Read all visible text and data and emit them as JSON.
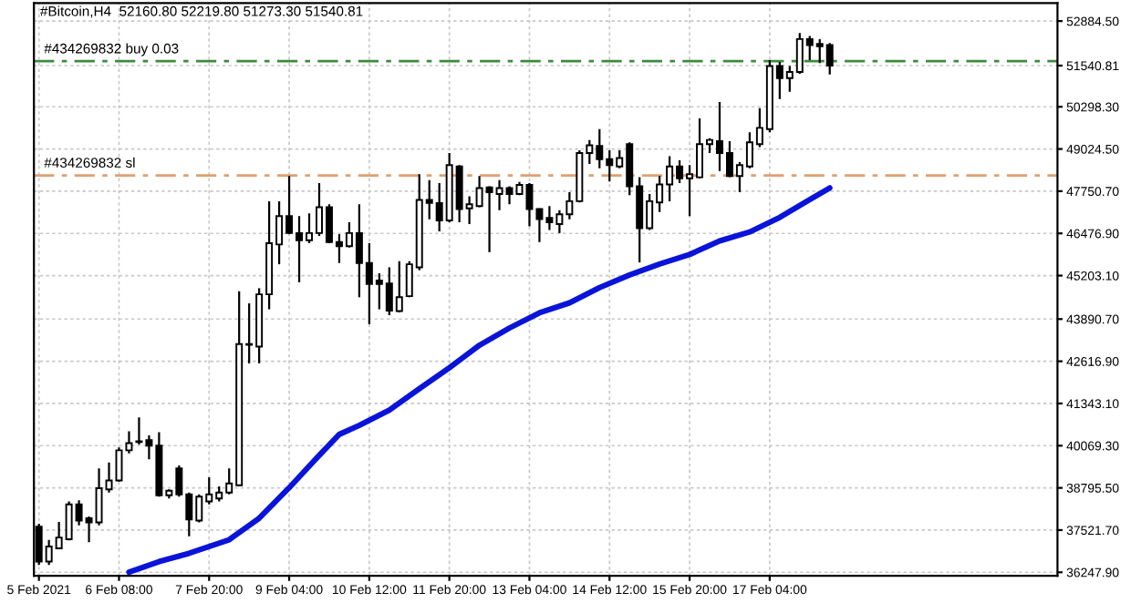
{
  "chart_data": {
    "type": "candlestick",
    "title": "#Bitcoin,H4  52160.80 52219.80 51273.30 51540.81",
    "x": [
      "2021-02-05T00:00",
      "2021-02-05T04:00",
      "2021-02-05T08:00",
      "2021-02-05T12:00",
      "2021-02-05T16:00",
      "2021-02-05T20:00",
      "2021-02-06T00:00",
      "2021-02-06T04:00",
      "2021-02-06T08:00",
      "2021-02-06T12:00",
      "2021-02-06T16:00",
      "2021-02-06T20:00",
      "2021-02-07T00:00",
      "2021-02-07T04:00",
      "2021-02-07T08:00",
      "2021-02-07T12:00",
      "2021-02-07T16:00",
      "2021-02-07T20:00",
      "2021-02-08T00:00",
      "2021-02-08T04:00",
      "2021-02-08T08:00",
      "2021-02-08T12:00",
      "2021-02-08T16:00",
      "2021-02-08T20:00",
      "2021-02-09T00:00",
      "2021-02-09T04:00",
      "2021-02-09T08:00",
      "2021-02-09T12:00",
      "2021-02-09T16:00",
      "2021-02-09T20:00",
      "2021-02-10T00:00",
      "2021-02-10T04:00",
      "2021-02-10T08:00",
      "2021-02-10T12:00",
      "2021-02-10T16:00",
      "2021-02-10T20:00",
      "2021-02-11T00:00",
      "2021-02-11T04:00",
      "2021-02-11T08:00",
      "2021-02-11T12:00",
      "2021-02-11T16:00",
      "2021-02-11T20:00",
      "2021-02-12T00:00",
      "2021-02-12T04:00",
      "2021-02-12T08:00",
      "2021-02-12T12:00",
      "2021-02-12T16:00",
      "2021-02-12T20:00",
      "2021-02-13T00:00",
      "2021-02-13T04:00",
      "2021-02-13T08:00",
      "2021-02-13T12:00",
      "2021-02-13T16:00",
      "2021-02-13T20:00",
      "2021-02-14T00:00",
      "2021-02-14T04:00",
      "2021-02-14T08:00",
      "2021-02-14T12:00",
      "2021-02-14T16:00",
      "2021-02-14T20:00",
      "2021-02-15T00:00",
      "2021-02-15T04:00",
      "2021-02-15T08:00",
      "2021-02-15T12:00",
      "2021-02-15T16:00",
      "2021-02-15T20:00",
      "2021-02-16T00:00",
      "2021-02-16T04:00",
      "2021-02-16T08:00",
      "2021-02-16T12:00",
      "2021-02-16T16:00",
      "2021-02-16T20:00",
      "2021-02-17T00:00",
      "2021-02-17T04:00",
      "2021-02-17T08:00",
      "2021-02-17T12:00",
      "2021-02-17T16:00",
      "2021-02-17T20:00",
      "2021-02-18T00:00",
      "2021-02-18T04:00"
    ],
    "ohlc": [
      [
        37624,
        37716,
        36466,
        36574
      ],
      [
        36574,
        37227,
        36466,
        37026
      ],
      [
        36971,
        37770,
        36955,
        37297
      ],
      [
        37243,
        38385,
        37210,
        38298
      ],
      [
        38298,
        38423,
        37662,
        37808
      ],
      [
        37879,
        37933,
        37156,
        37754
      ],
      [
        37754,
        39385,
        37662,
        38787
      ],
      [
        38749,
        39565,
        38657,
        39021
      ],
      [
        39021,
        40016,
        38983,
        39929
      ],
      [
        39929,
        40505,
        39836,
        40146
      ],
      [
        40179,
        40924,
        40108,
        40201
      ],
      [
        40233,
        40380,
        39657,
        40070
      ],
      [
        40070,
        40473,
        38532,
        38570
      ],
      [
        38570,
        38749,
        38477,
        38711
      ],
      [
        39385,
        39472,
        38532,
        38602
      ],
      [
        38602,
        38657,
        37335,
        37841
      ],
      [
        37808,
        38602,
        37754,
        38532
      ],
      [
        38385,
        39113,
        38298,
        38602
      ],
      [
        38477,
        38841,
        38385,
        38657
      ],
      [
        38657,
        39385,
        38602,
        38928
      ],
      [
        38874,
        44730,
        38841,
        43137
      ],
      [
        43115,
        44365,
        42555,
        43137
      ],
      [
        43061,
        44822,
        42555,
        44637
      ],
      [
        44637,
        47448,
        44186,
        46181
      ],
      [
        46143,
        47448,
        45545,
        46997
      ],
      [
        46997,
        48209,
        46453,
        46486
      ],
      [
        46486,
        46997,
        45002,
        46268
      ],
      [
        46268,
        47084,
        46181,
        46486
      ],
      [
        46486,
        47992,
        46399,
        47269
      ],
      [
        47269,
        47356,
        46181,
        46214
      ],
      [
        46214,
        46453,
        45583,
        46089
      ],
      [
        46089,
        46812,
        46051,
        46486
      ],
      [
        46486,
        47356,
        44550,
        45583
      ],
      [
        45583,
        46181,
        43735,
        44947
      ],
      [
        45056,
        45273,
        44186,
        44947
      ],
      [
        44964,
        45453,
        44007,
        44148
      ],
      [
        44132,
        45638,
        44094,
        44550
      ],
      [
        44583,
        45638,
        44550,
        45545
      ],
      [
        45453,
        48264,
        45366,
        47486
      ],
      [
        47486,
        48084,
        46905,
        47394
      ],
      [
        47394,
        47992,
        46540,
        46866
      ],
      [
        46866,
        48900,
        46812,
        48536
      ],
      [
        48498,
        48536,
        46812,
        47214
      ],
      [
        47231,
        47595,
        46758,
        47356
      ],
      [
        47301,
        48209,
        47269,
        47845
      ],
      [
        47867,
        47900,
        45910,
        47720
      ],
      [
        47666,
        48084,
        47176,
        47845
      ],
      [
        47845,
        47900,
        47356,
        47666
      ],
      [
        47666,
        48030,
        47628,
        47938
      ],
      [
        47938,
        47992,
        46687,
        47214
      ],
      [
        47214,
        47231,
        46214,
        46905
      ],
      [
        46943,
        47301,
        46578,
        46812
      ],
      [
        46758,
        47176,
        46486,
        47051
      ],
      [
        47051,
        47720,
        46905,
        47448
      ],
      [
        47448,
        48987,
        47410,
        48900
      ],
      [
        48900,
        49297,
        48574,
        49134
      ],
      [
        49117,
        49623,
        48443,
        48715
      ],
      [
        48715,
        48987,
        48046,
        48536
      ],
      [
        48498,
        48987,
        48443,
        48753
      ],
      [
        49172,
        49226,
        47628,
        47900
      ],
      [
        47900,
        48171,
        45600,
        46633
      ],
      [
        46633,
        47666,
        46578,
        47448
      ],
      [
        47410,
        48209,
        47122,
        47954
      ],
      [
        47954,
        48807,
        47448,
        48498
      ],
      [
        48498,
        48682,
        47992,
        48139
      ],
      [
        48139,
        48536,
        46997,
        48264
      ],
      [
        48171,
        49949,
        48139,
        49172
      ],
      [
        49172,
        49351,
        48900,
        49297
      ],
      [
        49259,
        50439,
        48356,
        48900
      ],
      [
        48900,
        49259,
        48171,
        48209
      ],
      [
        48209,
        48628,
        47720,
        48536
      ],
      [
        48498,
        49531,
        48443,
        49226
      ],
      [
        49172,
        50259,
        49079,
        49661
      ],
      [
        49623,
        51705,
        49531,
        51526
      ],
      [
        51526,
        51651,
        50531,
        51162
      ],
      [
        51162,
        51526,
        50749,
        51347
      ],
      [
        51347,
        52521,
        51292,
        52342
      ],
      [
        52342,
        52434,
        51705,
        52162
      ],
      [
        52195,
        52342,
        51618,
        52124
      ],
      [
        52160.8,
        52219.8,
        51273.3,
        51540.81
      ]
    ],
    "series": [
      {
        "type": "line",
        "color": "#0a14d8",
        "x": [
          "2021-02-06T12:00",
          "2021-02-07T00:00",
          "2021-02-07T12:00",
          "2021-02-08T04:00",
          "2021-02-08T16:00",
          "2021-02-09T04:00",
          "2021-02-09T16:00",
          "2021-02-10T00:00",
          "2021-02-10T08:00",
          "2021-02-10T20:00",
          "2021-02-11T08:00",
          "2021-02-11T20:00",
          "2021-02-12T08:00",
          "2021-02-12T20:00",
          "2021-02-13T08:00",
          "2021-02-13T20:00",
          "2021-02-14T08:00",
          "2021-02-14T20:00",
          "2021-02-15T08:00",
          "2021-02-15T20:00",
          "2021-02-16T08:00",
          "2021-02-16T20:00",
          "2021-02-17T08:00",
          "2021-02-17T20:00",
          "2021-02-18T04:00"
        ],
        "values": [
          36250,
          36570,
          36820,
          37230,
          37880,
          38800,
          39780,
          40410,
          40680,
          41140,
          41790,
          42420,
          43100,
          43620,
          44080,
          44380,
          44840,
          45220,
          45550,
          45840,
          46250,
          46520,
          46960,
          47500,
          47850
        ]
      }
    ],
    "ref_lines": [
      {
        "axis": "y",
        "value": 51673,
        "label": "#434269832 buy 0.03",
        "color": "#3c8c3c",
        "line_style": "dashed"
      },
      {
        "axis": "y",
        "value": 48226,
        "label": "#434269832 sl",
        "color": "#e0a070",
        "line_style": "dashed"
      }
    ],
    "xlim": [
      "2021-02-04T22:00",
      "2021-02-21T23:00"
    ],
    "xticks": [
      {
        "value": "2021-02-05T00:00",
        "label": "5 Feb 2021"
      },
      {
        "value": "2021-02-06T08:00",
        "label": "6 Feb 08:00"
      },
      {
        "value": "2021-02-07T20:00",
        "label": "7 Feb 20:00"
      },
      {
        "value": "2021-02-09T04:00",
        "label": "9 Feb 04:00"
      },
      {
        "value": "2021-02-10T12:00",
        "label": "10 Feb 12:00"
      },
      {
        "value": "2021-02-11T20:00",
        "label": "11 Feb 20:00"
      },
      {
        "value": "2021-02-13T04:00",
        "label": "13 Feb 04:00"
      },
      {
        "value": "2021-02-14T12:00",
        "label": "14 Feb 12:00"
      },
      {
        "value": "2021-02-15T20:00",
        "label": "15 Feb 20:00"
      },
      {
        "value": "2021-02-17T04:00",
        "label": "17 Feb 04:00"
      }
    ],
    "ylim": [
      36140,
      53430
    ],
    "yticks": [
      {
        "value": 36247.9,
        "label": "36247.90"
      },
      {
        "value": 37521.7,
        "label": "37521.70"
      },
      {
        "value": 38795.5,
        "label": "38795.50"
      },
      {
        "value": 40069.3,
        "label": "40069.30"
      },
      {
        "value": 41343.1,
        "label": "41343.10"
      },
      {
        "value": 42616.9,
        "label": "42616.90"
      },
      {
        "value": 43890.7,
        "label": "43890.70"
      },
      {
        "value": 45203.1,
        "label": "45203.10"
      },
      {
        "value": 46476.9,
        "label": "46476.90"
      },
      {
        "value": 47750.7,
        "label": "47750.70"
      },
      {
        "value": 49024.5,
        "label": "49024.50"
      },
      {
        "value": 50298.3,
        "label": "50298.30"
      },
      {
        "value": 51540.81,
        "label": "51540.81"
      },
      {
        "value": 52884.5,
        "label": "52884.50"
      }
    ],
    "grid": true
  }
}
